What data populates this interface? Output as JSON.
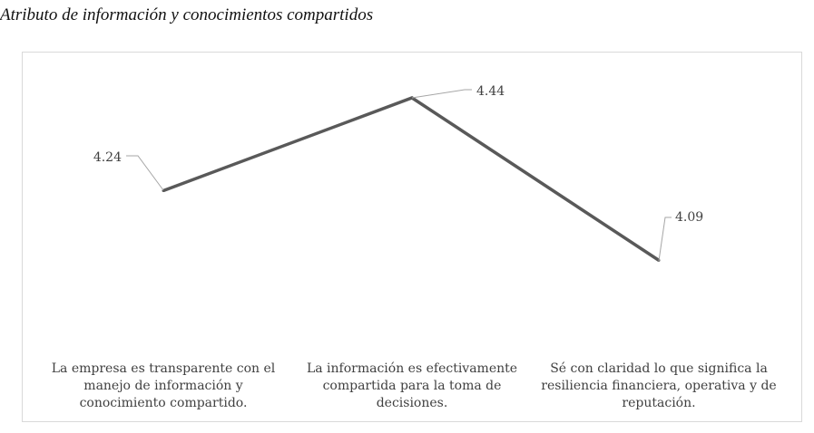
{
  "caption": "Atributo de información y conocimientos compartidos",
  "colors": {
    "line": "#595959",
    "leader": "#a6a6a6",
    "label_text": "#404040",
    "frame": "#d9d9d9"
  },
  "chart_data": {
    "type": "line",
    "title": "",
    "xlabel": "",
    "ylabel": "",
    "ylim": [
      3.5,
      4.6
    ],
    "grid": false,
    "legend": "none",
    "categories": [
      "La empresa es transparente con el manejo de información y conocimiento compartido.",
      "La información es efectivamente compartida para la  toma de decisiones.",
      "Sé con claridad lo que significa la resiliencia financiera, operativa y de reputación."
    ],
    "series": [
      {
        "values": [
          4.24,
          4.44,
          4.09
        ],
        "labels": [
          "4.24",
          "4.44",
          "4.09"
        ]
      }
    ]
  }
}
